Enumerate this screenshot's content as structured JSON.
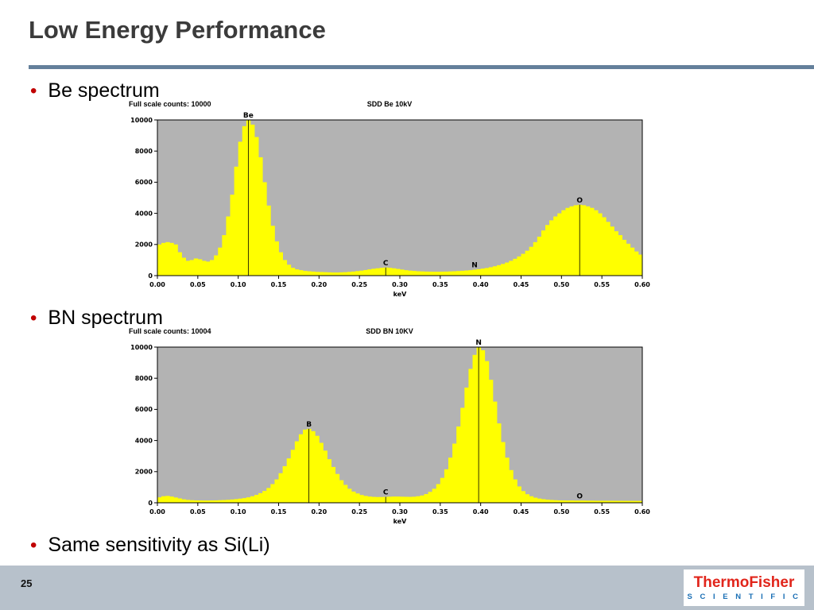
{
  "slide": {
    "title": "Low Energy Performance",
    "bullets": [
      "Be spectrum",
      "BN spectrum",
      "Same sensitivity as Si(Li)"
    ],
    "accent_color": "#64809b",
    "bullet_color": "#c00000"
  },
  "footer": {
    "page_number": "25",
    "logo_line1": "ThermoFisher",
    "logo_line2": "S C I E N T I F I C",
    "band_color": "#b7c1cb",
    "logo_red": "#e1251b",
    "logo_blue": "#1a6fb5"
  },
  "chart_data": [
    {
      "type": "bar",
      "header_left": "Full scale counts: 10000",
      "header_center": "SDD Be 10kV",
      "xlabel": "keV",
      "x_start": 0.0,
      "x_step": 0.005,
      "x_max": 0.6,
      "y_max": 10000,
      "y_ticks": [
        0,
        2000,
        4000,
        6000,
        8000,
        10000
      ],
      "x_ticks": [
        "0.00",
        "0.05",
        "0.10",
        "0.15",
        "0.20",
        "0.25",
        "0.30",
        "0.35",
        "0.40",
        "0.45",
        "0.50",
        "0.55",
        "0.60"
      ],
      "plot_bg": "#b3b3b3",
      "bar_color": "#ffff00",
      "values": [
        2000,
        2100,
        2150,
        2100,
        2000,
        1500,
        1150,
        950,
        1000,
        1100,
        1050,
        950,
        900,
        1000,
        1300,
        1800,
        2600,
        3800,
        5200,
        7000,
        8600,
        9600,
        10000,
        9700,
        8900,
        7600,
        6000,
        4500,
        3200,
        2200,
        1500,
        1000,
        700,
        500,
        400,
        350,
        300,
        280,
        260,
        240,
        230,
        220,
        210,
        200,
        200,
        210,
        220,
        240,
        260,
        290,
        320,
        360,
        400,
        440,
        470,
        500,
        520,
        500,
        470,
        430,
        390,
        350,
        320,
        300,
        280,
        270,
        260,
        255,
        250,
        250,
        255,
        260,
        270,
        280,
        295,
        310,
        330,
        350,
        380,
        410,
        450,
        490,
        540,
        600,
        670,
        750,
        840,
        950,
        1080,
        1230,
        1400,
        1600,
        1850,
        2150,
        2500,
        2900,
        3250,
        3550,
        3800,
        4000,
        4200,
        4350,
        4450,
        4520,
        4550,
        4520,
        4450,
        4350,
        4200,
        4000,
        3750,
        3450,
        3150,
        2850,
        2600,
        2300,
        2050,
        1800,
        1550,
        1350
      ],
      "labels": [
        {
          "text": "Be",
          "x": 0.11,
          "marker": true
        },
        {
          "text": "C",
          "x": 0.28,
          "marker": true
        },
        {
          "text": "N",
          "x": 0.39,
          "marker": false
        },
        {
          "text": "O",
          "x": 0.52,
          "marker": true
        }
      ]
    },
    {
      "type": "bar",
      "header_left": "Full scale counts: 10004",
      "header_center": "SDD BN 10KV",
      "xlabel": "keV",
      "x_start": 0.0,
      "x_step": 0.005,
      "x_max": 0.6,
      "y_max": 10000,
      "y_ticks": [
        0,
        2000,
        4000,
        6000,
        8000,
        10000
      ],
      "x_ticks": [
        "0.00",
        "0.05",
        "0.10",
        "0.15",
        "0.20",
        "0.25",
        "0.30",
        "0.35",
        "0.40",
        "0.45",
        "0.50",
        "0.55",
        "0.60"
      ],
      "plot_bg": "#b3b3b3",
      "bar_color": "#ffff00",
      "values": [
        350,
        420,
        440,
        400,
        340,
        280,
        220,
        185,
        165,
        155,
        150,
        145,
        145,
        150,
        155,
        165,
        175,
        190,
        210,
        235,
        265,
        300,
        350,
        420,
        510,
        620,
        760,
        950,
        1200,
        1500,
        1900,
        2350,
        2850,
        3400,
        3950,
        4400,
        4700,
        4750,
        4600,
        4300,
        3850,
        3350,
        2800,
        2300,
        1850,
        1450,
        1150,
        900,
        720,
        600,
        500,
        440,
        400,
        380,
        370,
        370,
        380,
        390,
        400,
        400,
        390,
        385,
        380,
        390,
        420,
        470,
        560,
        700,
        900,
        1200,
        1600,
        2150,
        2900,
        3800,
        4900,
        6100,
        7400,
        8600,
        9500,
        10000,
        9800,
        9100,
        7900,
        6500,
        5100,
        3900,
        2900,
        2100,
        1500,
        1050,
        750,
        550,
        420,
        330,
        270,
        230,
        200,
        180,
        165,
        155,
        150,
        145,
        145,
        140,
        140,
        140,
        135,
        135,
        130,
        130,
        130,
        128,
        126,
        125,
        124,
        123,
        122,
        121,
        120,
        120
      ],
      "labels": [
        {
          "text": "B",
          "x": 0.185,
          "marker": true
        },
        {
          "text": "C",
          "x": 0.28,
          "marker": true
        },
        {
          "text": "N",
          "x": 0.395,
          "marker": true
        },
        {
          "text": "O",
          "x": 0.52,
          "marker": false
        }
      ]
    }
  ]
}
